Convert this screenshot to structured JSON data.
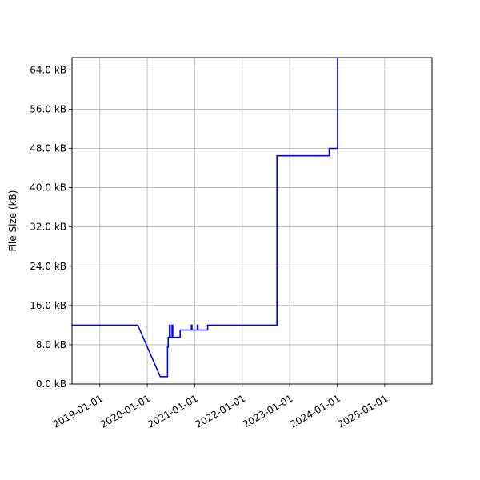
{
  "chart_data": {
    "type": "line",
    "title": "",
    "xlabel": "",
    "ylabel": "File Size (kB)",
    "grid": true,
    "x_axis": "date",
    "xlim": [
      "2018-06-01",
      "2025-12-31"
    ],
    "ylim": [
      0,
      66.5
    ],
    "x_ticks": [
      "2019-01-01",
      "2020-01-01",
      "2021-01-01",
      "2022-01-01",
      "2023-01-01",
      "2024-01-01",
      "2025-01-01"
    ],
    "y_ticks": [
      0,
      8,
      16,
      24,
      32,
      40,
      48,
      56,
      64
    ],
    "y_tick_labels": [
      "0.0 kB",
      "8.0 kB",
      "16.0 kB",
      "24.0 kB",
      "32.0 kB",
      "40.0 kB",
      "48.0 kB",
      "56.0 kB",
      "64.0 kB"
    ],
    "series": [
      {
        "color": "#0000ff",
        "x": [
          "2018-06-01",
          "2019-10-20",
          "2020-04-10",
          "2020-06-05",
          "2020-06-05",
          "2020-06-10",
          "2020-06-10",
          "2020-06-20",
          "2020-06-20",
          "2020-06-25",
          "2020-06-25",
          "2020-07-10",
          "2020-07-10",
          "2020-07-15",
          "2020-07-15",
          "2020-09-10",
          "2020-09-10",
          "2020-12-05",
          "2020-12-05",
          "2020-12-10",
          "2020-12-10",
          "2021-01-20",
          "2021-01-20",
          "2021-01-25",
          "2021-01-25",
          "2021-04-10",
          "2021-04-10",
          "2022-09-25",
          "2022-09-25",
          "2023-11-01",
          "2023-11-01",
          "2024-01-05",
          "2024-01-05"
        ],
        "y": [
          12,
          12,
          1.5,
          1.5,
          7.5,
          7.5,
          9.5,
          9.5,
          12,
          12,
          9.5,
          9.5,
          12,
          12,
          9.5,
          9.5,
          11,
          11,
          12,
          12,
          11,
          11,
          12,
          12,
          11,
          11,
          12,
          12,
          46.5,
          46.5,
          48,
          48,
          66.5
        ]
      }
    ]
  }
}
